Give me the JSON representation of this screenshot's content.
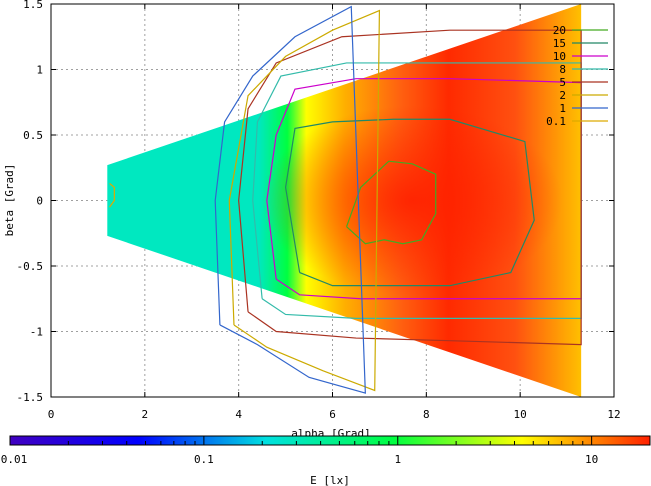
{
  "chart_data": {
    "type": "heatmap",
    "title": "",
    "xlabel": "alpha [Grad]",
    "ylabel": "beta [Grad]",
    "xlim": [
      0,
      12
    ],
    "ylim": [
      1.5,
      -1.5
    ],
    "x_ticks": [
      "0",
      "2",
      "4",
      "6",
      "8",
      "10",
      "12"
    ],
    "y_ticks": [
      "-1.5",
      "-1",
      "-0.5",
      "0",
      "0.5",
      "1",
      "1.5"
    ],
    "grid": true,
    "legend_position": "top-right",
    "colorbar": {
      "label": "E [lx]",
      "scale": "log",
      "range": [
        0.01,
        20
      ],
      "ticks": [
        "0.01",
        "0.1",
        "1",
        "10"
      ],
      "colors": [
        "#4000c0",
        "#0000ff",
        "#00e0e0",
        "#00ff40",
        "#ffff00",
        "#ff2000"
      ]
    },
    "field": {
      "domain": "wedge",
      "apex_x": 1.2,
      "left_half_height": 0.27,
      "right_x": 11.3,
      "right_half_height": 1.5,
      "peak_alpha": 7.7,
      "peak_beta": 0.0,
      "peak_value": 20
    },
    "series": [
      {
        "name": "20",
        "value": 20,
        "color": "#44aa22",
        "alpha": [
          6.3,
          6.7,
          7.1,
          7.5,
          7.9,
          8.2,
          8.2,
          7.7,
          7.2,
          6.6,
          6.3
        ],
        "beta": [
          -0.2,
          -0.33,
          -0.3,
          -0.33,
          -0.3,
          -0.1,
          0.2,
          0.28,
          0.3,
          0.1,
          -0.2
        ]
      },
      {
        "name": "15",
        "value": 15,
        "color": "#228866",
        "alpha": [
          5.3,
          6.0,
          7.3,
          8.5,
          9.8,
          10.3,
          10.1,
          8.5,
          7.3,
          6.0,
          5.2,
          5.0,
          5.3
        ],
        "beta": [
          -0.55,
          -0.65,
          -0.65,
          -0.65,
          -0.55,
          -0.15,
          0.45,
          0.62,
          0.62,
          0.6,
          0.55,
          0.1,
          -0.55
        ]
      },
      {
        "name": "10",
        "value": 10,
        "color": "#cc00cc",
        "alpha": [
          4.8,
          5.3,
          6.6,
          8.5,
          11.3,
          11.3,
          8.5,
          6.5,
          5.2,
          4.8,
          4.6,
          4.8
        ],
        "beta": [
          -0.6,
          -0.72,
          -0.75,
          -0.75,
          -0.75,
          0.9,
          0.93,
          0.93,
          0.85,
          0.5,
          0.0,
          -0.6
        ]
      },
      {
        "name": "8",
        "value": 8,
        "color": "#33bbaa",
        "alpha": [
          4.5,
          5.0,
          6.5,
          8.5,
          11.3,
          11.3,
          8.5,
          6.3,
          4.9,
          4.4,
          4.3,
          4.5
        ],
        "beta": [
          -0.75,
          -0.87,
          -0.9,
          -0.9,
          -0.9,
          1.05,
          1.05,
          1.05,
          0.95,
          0.6,
          0.0,
          -0.75
        ]
      },
      {
        "name": "5",
        "value": 5,
        "color": "#aa3322",
        "alpha": [
          4.2,
          4.8,
          6.5,
          8.5,
          11.3,
          11.3,
          8.5,
          6.2,
          4.8,
          4.2,
          4.0,
          4.2
        ],
        "beta": [
          -0.85,
          -1.0,
          -1.05,
          -1.07,
          -1.1,
          1.3,
          1.3,
          1.25,
          1.05,
          0.7,
          0.0,
          -0.85
        ]
      },
      {
        "name": "2",
        "value": 2,
        "color": "#ccaa00",
        "alpha": [
          3.9,
          4.6,
          5.8,
          6.9,
          7.0,
          6.0,
          5.0,
          4.2,
          3.8,
          3.9
        ],
        "beta": [
          -0.95,
          -1.12,
          -1.3,
          -1.45,
          1.45,
          1.3,
          1.1,
          0.8,
          0.0,
          -0.95
        ]
      },
      {
        "name": "1",
        "value": 1,
        "color": "#3366cc",
        "alpha": [
          3.6,
          4.4,
          5.5,
          6.7,
          6.4,
          5.2,
          4.3,
          3.7,
          3.5,
          3.6
        ],
        "beta": [
          -0.95,
          -1.1,
          -1.35,
          -1.47,
          1.48,
          1.25,
          0.95,
          0.6,
          0.0,
          -0.95
        ]
      },
      {
        "name": "0.1",
        "value": 0.1,
        "color": "#ddaa00",
        "alpha": [
          1.25,
          1.35,
          1.35,
          1.25
        ],
        "beta": [
          -0.05,
          0.0,
          0.1,
          0.13
        ]
      }
    ]
  }
}
